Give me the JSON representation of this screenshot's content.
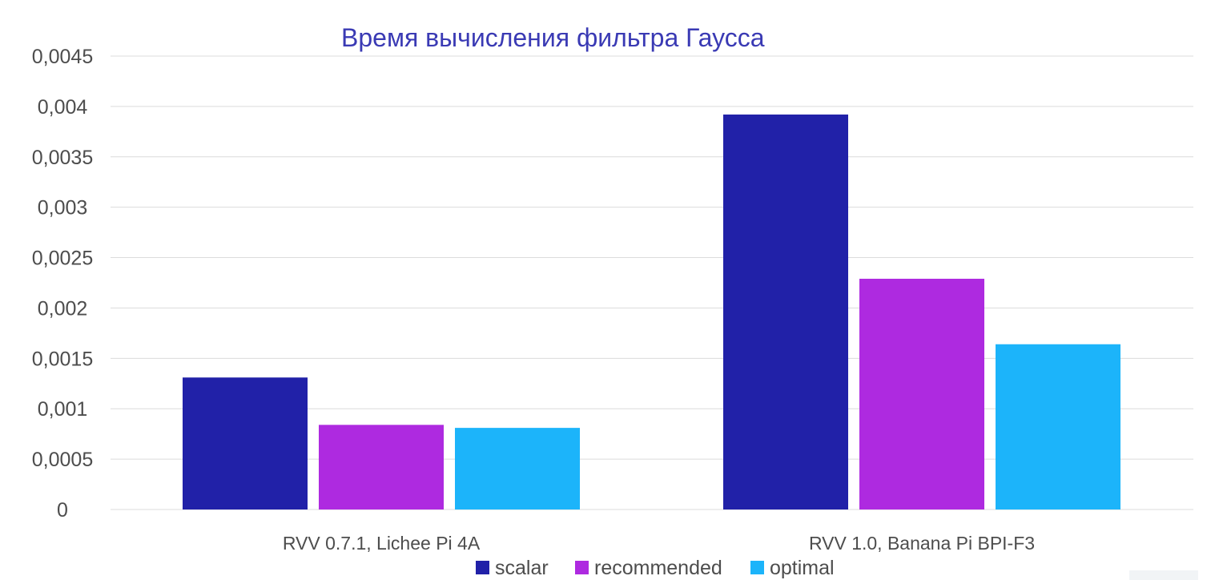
{
  "chart_data": {
    "type": "bar",
    "title": "Время вычисления фильтра Гаусса",
    "xlabel": "",
    "ylabel": "",
    "categories": [
      "RVV 0.7.1, Lichee Pi 4A",
      "RVV 1.0, Banana Pi BPI-F3"
    ],
    "series": [
      {
        "name": "scalar",
        "color": "#2121a8",
        "values": [
          0.00131,
          0.00392
        ]
      },
      {
        "name": "recommended",
        "color": "#ae2ae0",
        "values": [
          0.00084,
          0.00229
        ]
      },
      {
        "name": "optimal",
        "color": "#1cb4fa",
        "values": [
          0.00081,
          0.00164
        ]
      }
    ],
    "ylim": [
      0,
      0.0045
    ],
    "yticks": [
      "0",
      "0,0005",
      "0,001",
      "0,0015",
      "0,002",
      "0,0025",
      "0,003",
      "0,0035",
      "0,004",
      "0,0045"
    ],
    "grid": true,
    "gridColor": "#dcdcdc",
    "legend": "bottom"
  }
}
